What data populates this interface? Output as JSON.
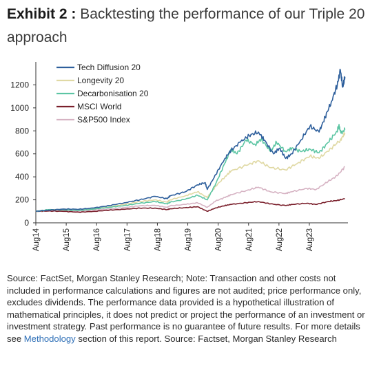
{
  "header": {
    "exhibit_label": "Exhibit 2 :",
    "title": "Backtesting the performance of our Triple 20 approach"
  },
  "footnote": {
    "text_before_link": "Source: FactSet, Morgan Stanley Research; Note: Transaction and other costs not included in performance calculations and figures are not audited; price performance only, excludes dividends. The performance data provided is a hypothetical illustration of mathematical principles, it does not predict or project the performance of an investment or investment strategy. Past performance is no guarantee of future results. For more details see ",
    "link_text": "Methodology",
    "text_after_link": " section of this report. Source: Factset, Morgan Stanley Research"
  },
  "chart_data": {
    "type": "line",
    "title": "",
    "xlabel": "",
    "ylabel": "",
    "ylim": [
      0,
      1400
    ],
    "yticks": [
      0,
      200,
      400,
      600,
      800,
      1000,
      1200
    ],
    "xlim": [
      2014.58,
      2024.85
    ],
    "xticks": [
      {
        "label": "Aug14",
        "x": 2014.58
      },
      {
        "label": "Aug15",
        "x": 2015.58
      },
      {
        "label": "Aug16",
        "x": 2016.58
      },
      {
        "label": "Aug17",
        "x": 2017.58
      },
      {
        "label": "Aug18",
        "x": 2018.58
      },
      {
        "label": "Aug19",
        "x": 2019.58
      },
      {
        "label": "Aug20",
        "x": 2020.58
      },
      {
        "label": "Aug21",
        "x": 2021.58
      },
      {
        "label": "Aug22",
        "x": 2022.58
      },
      {
        "label": "Aug23",
        "x": 2023.58
      }
    ],
    "grid": false,
    "legend_position": "top-left",
    "series": [
      {
        "name": "Tech Diffusion 20",
        "color": "#2e5f9c",
        "points": [
          [
            2014.58,
            100
          ],
          [
            2015.0,
            110
          ],
          [
            2015.5,
            120
          ],
          [
            2016.0,
            118
          ],
          [
            2016.5,
            130
          ],
          [
            2017.0,
            150
          ],
          [
            2017.5,
            175
          ],
          [
            2018.0,
            200
          ],
          [
            2018.5,
            230
          ],
          [
            2018.9,
            210
          ],
          [
            2019.0,
            235
          ],
          [
            2019.5,
            270
          ],
          [
            2019.9,
            330
          ],
          [
            2020.15,
            350
          ],
          [
            2020.22,
            290
          ],
          [
            2020.5,
            420
          ],
          [
            2020.8,
            560
          ],
          [
            2021.0,
            630
          ],
          [
            2021.3,
            700
          ],
          [
            2021.6,
            760
          ],
          [
            2021.9,
            790
          ],
          [
            2022.1,
            720
          ],
          [
            2022.4,
            600
          ],
          [
            2022.6,
            650
          ],
          [
            2022.8,
            560
          ],
          [
            2023.0,
            600
          ],
          [
            2023.3,
            720
          ],
          [
            2023.6,
            840
          ],
          [
            2023.9,
            790
          ],
          [
            2024.1,
            920
          ],
          [
            2024.3,
            1050
          ],
          [
            2024.5,
            1200
          ],
          [
            2024.6,
            1330
          ],
          [
            2024.68,
            1180
          ],
          [
            2024.75,
            1270
          ]
        ]
      },
      {
        "name": "Longevity 20",
        "color": "#e0d9a4",
        "points": [
          [
            2014.58,
            100
          ],
          [
            2015.0,
            112
          ],
          [
            2015.5,
            118
          ],
          [
            2016.0,
            112
          ],
          [
            2016.5,
            125
          ],
          [
            2017.0,
            140
          ],
          [
            2017.5,
            160
          ],
          [
            2018.0,
            185
          ],
          [
            2018.5,
            200
          ],
          [
            2018.9,
            180
          ],
          [
            2019.0,
            200
          ],
          [
            2019.5,
            235
          ],
          [
            2019.9,
            270
          ],
          [
            2020.22,
            220
          ],
          [
            2020.5,
            320
          ],
          [
            2020.8,
            400
          ],
          [
            2021.0,
            450
          ],
          [
            2021.5,
            500
          ],
          [
            2021.9,
            540
          ],
          [
            2022.3,
            480
          ],
          [
            2022.8,
            460
          ],
          [
            2023.2,
            520
          ],
          [
            2023.6,
            580
          ],
          [
            2023.9,
            560
          ],
          [
            2024.3,
            650
          ],
          [
            2024.6,
            720
          ],
          [
            2024.75,
            780
          ]
        ]
      },
      {
        "name": "Decarbonisation 20",
        "color": "#5cc5a3",
        "points": [
          [
            2014.58,
            100
          ],
          [
            2015.0,
            115
          ],
          [
            2015.5,
            112
          ],
          [
            2016.0,
            108
          ],
          [
            2016.5,
            120
          ],
          [
            2017.0,
            135
          ],
          [
            2017.5,
            150
          ],
          [
            2018.0,
            170
          ],
          [
            2018.5,
            185
          ],
          [
            2018.9,
            165
          ],
          [
            2019.0,
            180
          ],
          [
            2019.5,
            205
          ],
          [
            2019.9,
            240
          ],
          [
            2020.22,
            200
          ],
          [
            2020.5,
            340
          ],
          [
            2020.8,
            520
          ],
          [
            2021.0,
            640
          ],
          [
            2021.2,
            600
          ],
          [
            2021.5,
            720
          ],
          [
            2021.8,
            680
          ],
          [
            2022.0,
            730
          ],
          [
            2022.3,
            620
          ],
          [
            2022.5,
            700
          ],
          [
            2022.8,
            620
          ],
          [
            2023.0,
            650
          ],
          [
            2023.3,
            620
          ],
          [
            2023.6,
            640
          ],
          [
            2023.9,
            610
          ],
          [
            2024.2,
            700
          ],
          [
            2024.5,
            800
          ],
          [
            2024.55,
            850
          ],
          [
            2024.62,
            780
          ],
          [
            2024.75,
            810
          ]
        ]
      },
      {
        "name": "MSCI World",
        "color": "#7a1f2b",
        "points": [
          [
            2014.58,
            100
          ],
          [
            2015.0,
            103
          ],
          [
            2015.5,
            100
          ],
          [
            2016.0,
            92
          ],
          [
            2016.5,
            100
          ],
          [
            2017.0,
            110
          ],
          [
            2017.5,
            118
          ],
          [
            2018.0,
            128
          ],
          [
            2018.5,
            128
          ],
          [
            2018.9,
            115
          ],
          [
            2019.0,
            122
          ],
          [
            2019.5,
            132
          ],
          [
            2019.9,
            140
          ],
          [
            2020.22,
            100
          ],
          [
            2020.5,
            130
          ],
          [
            2020.8,
            150
          ],
          [
            2021.0,
            160
          ],
          [
            2021.5,
            175
          ],
          [
            2021.9,
            185
          ],
          [
            2022.3,
            165
          ],
          [
            2022.8,
            150
          ],
          [
            2023.0,
            160
          ],
          [
            2023.5,
            170
          ],
          [
            2023.8,
            160
          ],
          [
            2024.2,
            185
          ],
          [
            2024.5,
            195
          ],
          [
            2024.75,
            210
          ]
        ]
      },
      {
        "name": "S&P500 Index",
        "color": "#d6b3c3",
        "points": [
          [
            2014.58,
            100
          ],
          [
            2015.0,
            104
          ],
          [
            2015.5,
            105
          ],
          [
            2016.0,
            100
          ],
          [
            2016.5,
            110
          ],
          [
            2017.0,
            120
          ],
          [
            2017.5,
            132
          ],
          [
            2018.0,
            148
          ],
          [
            2018.5,
            152
          ],
          [
            2018.9,
            135
          ],
          [
            2019.0,
            148
          ],
          [
            2019.5,
            160
          ],
          [
            2019.9,
            175
          ],
          [
            2020.22,
            135
          ],
          [
            2020.5,
            190
          ],
          [
            2020.8,
            220
          ],
          [
            2021.0,
            245
          ],
          [
            2021.5,
            280
          ],
          [
            2021.9,
            310
          ],
          [
            2022.3,
            270
          ],
          [
            2022.8,
            255
          ],
          [
            2023.0,
            270
          ],
          [
            2023.5,
            300
          ],
          [
            2023.8,
            290
          ],
          [
            2024.2,
            360
          ],
          [
            2024.5,
            410
          ],
          [
            2024.75,
            490
          ]
        ]
      }
    ]
  }
}
